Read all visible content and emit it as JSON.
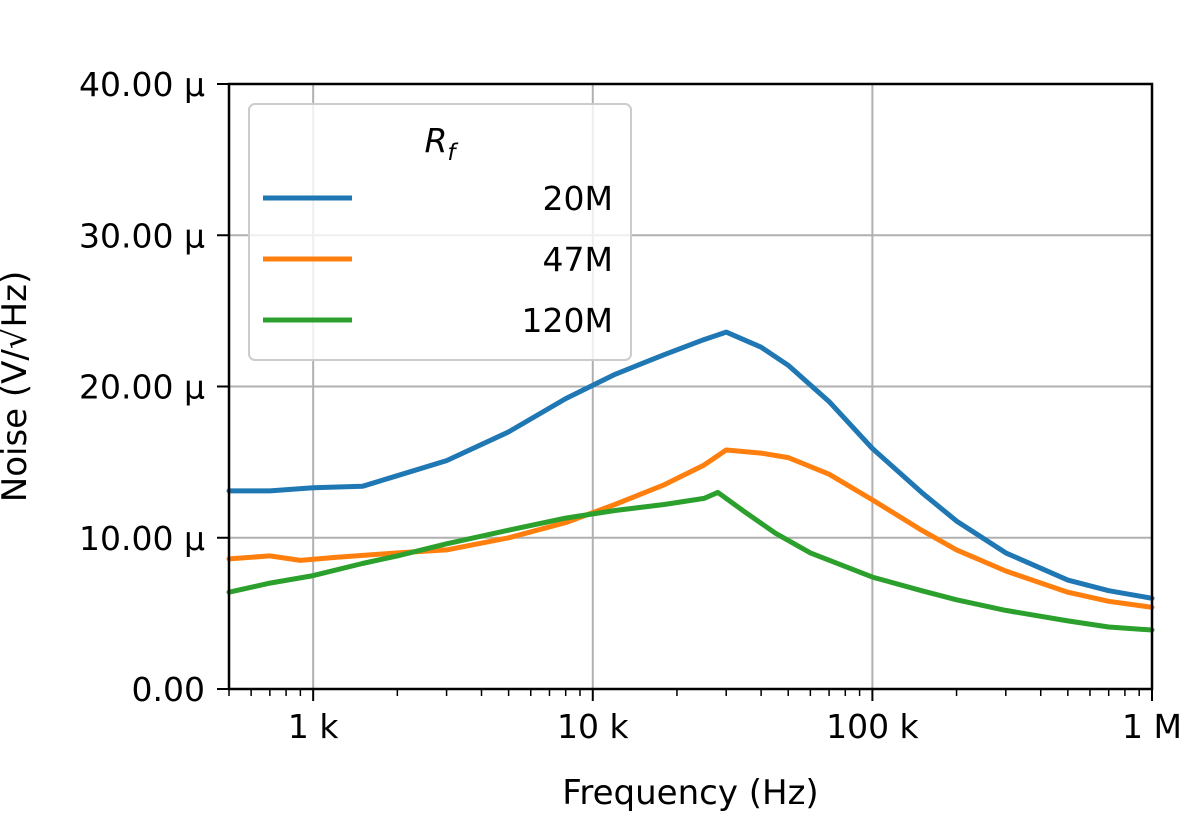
{
  "chart_data": {
    "type": "line",
    "xscale": "log",
    "xlim": [
      500,
      1000000
    ],
    "ylim": [
      0,
      4e-05
    ],
    "xlabel": "Frequency (Hz)",
    "ylabel": "Noise (V/√Hz)",
    "grid": true,
    "x_ticks": [
      {
        "value": 1000,
        "label": "1 k"
      },
      {
        "value": 10000,
        "label": "10 k"
      },
      {
        "value": 100000,
        "label": "100 k"
      },
      {
        "value": 1000000,
        "label": "1 M"
      }
    ],
    "y_ticks": [
      {
        "value": 0,
        "label": "0.00"
      },
      {
        "value": 1e-05,
        "label": "10.00 μ"
      },
      {
        "value": 2e-05,
        "label": "20.00 μ"
      },
      {
        "value": 3e-05,
        "label": "30.00 μ"
      },
      {
        "value": 4e-05,
        "label": "40.00 μ"
      }
    ],
    "legend": {
      "title": "R_f",
      "title_main": "R",
      "title_sub": "f",
      "position": "upper-left"
    },
    "series": [
      {
        "name": "20M",
        "color": "#1f77b4",
        "points": [
          [
            500,
            1.31e-05
          ],
          [
            700,
            1.31e-05
          ],
          [
            1000,
            1.33e-05
          ],
          [
            1500,
            1.34e-05
          ],
          [
            2000,
            1.41e-05
          ],
          [
            3000,
            1.51e-05
          ],
          [
            5000,
            1.7e-05
          ],
          [
            8000,
            1.92e-05
          ],
          [
            12000,
            2.08e-05
          ],
          [
            18000,
            2.21e-05
          ],
          [
            25000,
            2.31e-05
          ],
          [
            30000,
            2.36e-05
          ],
          [
            40000,
            2.26e-05
          ],
          [
            50000,
            2.14e-05
          ],
          [
            70000,
            1.9e-05
          ],
          [
            100000,
            1.59e-05
          ],
          [
            150000,
            1.3e-05
          ],
          [
            200000,
            1.11e-05
          ],
          [
            300000,
            9e-06
          ],
          [
            500000,
            7.2e-06
          ],
          [
            700000,
            6.5e-06
          ],
          [
            1000000,
            6e-06
          ]
        ]
      },
      {
        "name": "47M",
        "color": "#ff7f0e",
        "points": [
          [
            500,
            8.6e-06
          ],
          [
            700,
            8.8e-06
          ],
          [
            900,
            8.5e-06
          ],
          [
            1200,
            8.7e-06
          ],
          [
            2000,
            9e-06
          ],
          [
            3000,
            9.2e-06
          ],
          [
            5000,
            1e-05
          ],
          [
            8000,
            1.1e-05
          ],
          [
            12000,
            1.22e-05
          ],
          [
            18000,
            1.35e-05
          ],
          [
            25000,
            1.48e-05
          ],
          [
            30000,
            1.58e-05
          ],
          [
            40000,
            1.56e-05
          ],
          [
            50000,
            1.53e-05
          ],
          [
            70000,
            1.42e-05
          ],
          [
            100000,
            1.25e-05
          ],
          [
            150000,
            1.05e-05
          ],
          [
            200000,
            9.2e-06
          ],
          [
            300000,
            7.8e-06
          ],
          [
            500000,
            6.4e-06
          ],
          [
            700000,
            5.8e-06
          ],
          [
            1000000,
            5.4e-06
          ]
        ]
      },
      {
        "name": "120M",
        "color": "#2ca02c",
        "points": [
          [
            500,
            6.4e-06
          ],
          [
            700,
            7e-06
          ],
          [
            1000,
            7.5e-06
          ],
          [
            1500,
            8.3e-06
          ],
          [
            2000,
            8.8e-06
          ],
          [
            3000,
            9.6e-06
          ],
          [
            5000,
            1.05e-05
          ],
          [
            8000,
            1.13e-05
          ],
          [
            12000,
            1.18e-05
          ],
          [
            18000,
            1.22e-05
          ],
          [
            25000,
            1.26e-05
          ],
          [
            28000,
            1.3e-05
          ],
          [
            35000,
            1.17e-05
          ],
          [
            45000,
            1.03e-05
          ],
          [
            60000,
            9e-06
          ],
          [
            100000,
            7.4e-06
          ],
          [
            150000,
            6.5e-06
          ],
          [
            200000,
            5.9e-06
          ],
          [
            300000,
            5.2e-06
          ],
          [
            500000,
            4.5e-06
          ],
          [
            700000,
            4.1e-06
          ],
          [
            1000000,
            3.9e-06
          ]
        ]
      }
    ]
  }
}
